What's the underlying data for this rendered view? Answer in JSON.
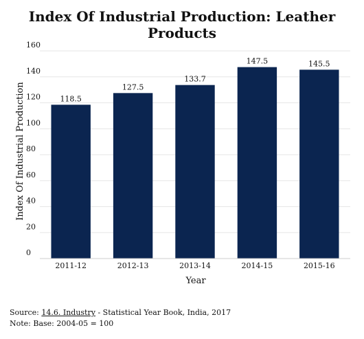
{
  "chart_data": {
    "type": "bar",
    "title": "Index Of Industrial Production: Leather Products",
    "xlabel": "Year",
    "ylabel": "Index Of Industrial Production",
    "categories": [
      "2011-12",
      "2012-13",
      "2013-14",
      "2014-15",
      "2015-16"
    ],
    "values": [
      118.5,
      127.5,
      133.7,
      147.5,
      145.5
    ],
    "value_labels": [
      "118.5",
      "127.5",
      "133.7",
      "147.5",
      "145.5"
    ],
    "ylim": [
      0,
      160
    ],
    "yticks": [
      "0",
      "20",
      "40",
      "60",
      "80",
      "100",
      "120",
      "140",
      "160"
    ],
    "grid": true,
    "bar_color": "#0b2550"
  },
  "footer": {
    "source_prefix": "Source: ",
    "source_link": "14.6. Industry",
    "source_suffix": " - Statistical Year Book, India, 2017",
    "note": "Note: Base: 2004-05 = 100"
  }
}
